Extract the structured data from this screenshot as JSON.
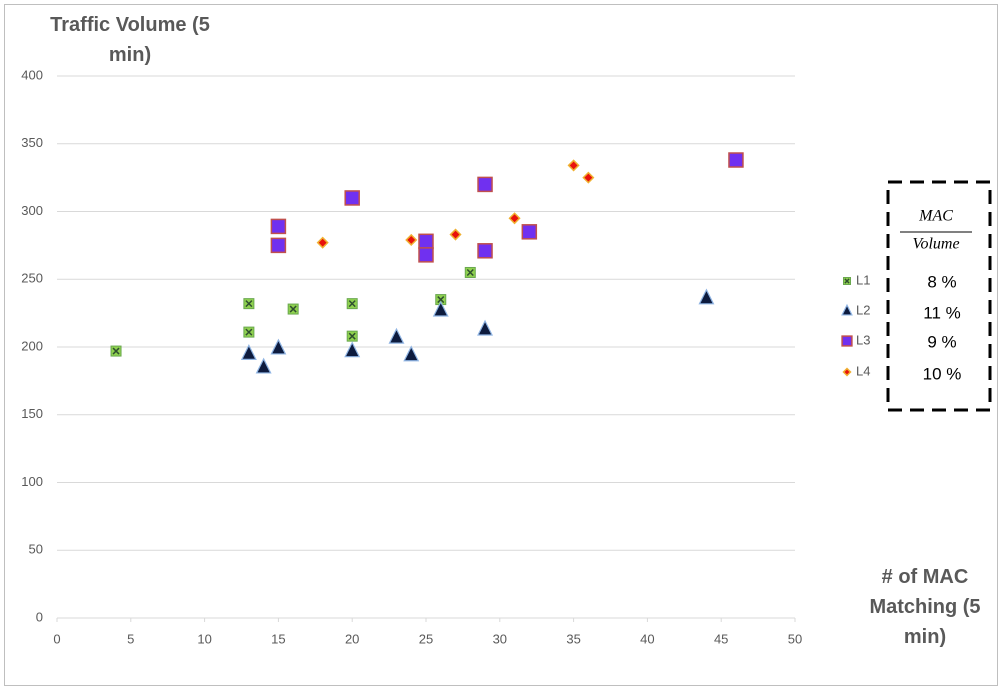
{
  "chart_data": {
    "type": "scatter",
    "y_label": "Traffic Volume (5 min)",
    "x_label": "# of MAC Matching (5 min)",
    "xlim": [
      0,
      50
    ],
    "xticks": [
      0,
      5,
      10,
      15,
      20,
      25,
      30,
      35,
      40,
      45,
      50
    ],
    "ylim": [
      0,
      400
    ],
    "yticks": [
      0,
      50,
      100,
      150,
      200,
      250,
      300,
      350,
      400
    ],
    "grid": true,
    "legend": "right",
    "series": [
      {
        "name": "L1",
        "marker": "square-x",
        "color": "#8fd14f",
        "x": [
          4,
          13,
          13,
          16,
          20,
          20,
          26,
          28
        ],
        "values": [
          197,
          232,
          211,
          228,
          232,
          208,
          235,
          255
        ]
      },
      {
        "name": "L2",
        "marker": "triangle",
        "color": "#0d1b3e",
        "x": [
          13,
          14,
          15,
          20,
          23,
          24,
          26,
          29,
          44
        ],
        "values": [
          195,
          185,
          199,
          197,
          207,
          194,
          227,
          213,
          236
        ]
      },
      {
        "name": "L3",
        "marker": "square",
        "color": "#7030f0",
        "x": [
          15,
          15,
          20,
          25,
          25,
          29,
          29,
          32,
          46
        ],
        "values": [
          289,
          275,
          310,
          278,
          268,
          320,
          271,
          285,
          338
        ]
      },
      {
        "name": "L4",
        "marker": "diamond",
        "color": "#e8120c",
        "x": [
          18,
          24,
          27,
          31,
          35,
          36
        ],
        "values": [
          277,
          279,
          283,
          295,
          334,
          325
        ]
      }
    ],
    "ratio_header": {
      "numerator": "MAC",
      "denominator": "Volume"
    },
    "ratio_labels": [
      "8 %",
      "11 %",
      "9 %",
      "10 %"
    ]
  }
}
